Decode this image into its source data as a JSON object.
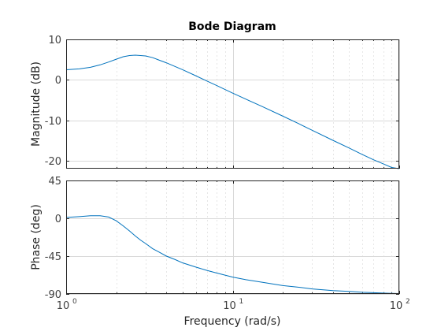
{
  "chart_data": {
    "type": "line",
    "title": "Bode Diagram",
    "xlabel": "Frequency  (rad/s)",
    "x_scale": "log",
    "xlim": [
      1,
      100
    ],
    "x_ticks": [
      1,
      10,
      100
    ],
    "x_tick_labels": [
      {
        "base": "10",
        "exp": "0"
      },
      {
        "base": "10",
        "exp": "1"
      },
      {
        "base": "10",
        "exp": "2"
      }
    ],
    "grid": true,
    "color": "#0072bd",
    "panels": [
      {
        "name": "magnitude",
        "ylabel": "Magnitude (dB)",
        "ylim": [
          -22,
          10
        ],
        "y_ticks": [
          10,
          0,
          -10,
          -20
        ],
        "y_tick_labels": [
          "10",
          "0",
          "-10",
          "-20"
        ],
        "series": [
          {
            "x": [
              1,
              1.2,
              1.4,
              1.6,
              1.8,
              2,
              2.2,
              2.4,
              2.6,
              2.8,
              3,
              3.3,
              3.6,
              4,
              4.5,
              5,
              6,
              7,
              8,
              10,
              12,
              15,
              20,
              25,
              30,
              40,
              50,
              60,
              70,
              80,
              90,
              100
            ],
            "y": [
              2.5,
              2.7,
              3.1,
              3.7,
              4.4,
              5.1,
              5.7,
              6.0,
              6.1,
              6.0,
              5.9,
              5.5,
              4.9,
              4.2,
              3.3,
              2.5,
              1.0,
              -0.3,
              -1.4,
              -3.3,
              -4.8,
              -6.6,
              -9.0,
              -10.9,
              -12.5,
              -15.0,
              -16.9,
              -18.5,
              -19.8,
              -20.8,
              -21.7,
              -22.0
            ]
          }
        ]
      },
      {
        "name": "phase",
        "ylabel": "Phase (deg)",
        "ylim": [
          -90,
          45
        ],
        "y_ticks": [
          45,
          0,
          -45,
          -90
        ],
        "y_tick_labels": [
          "45",
          "0",
          "-45",
          "-90"
        ],
        "series": [
          {
            "x": [
              1,
              1.2,
              1.4,
              1.6,
              1.8,
              2,
              2.2,
              2.4,
              2.6,
              2.8,
              3,
              3.3,
              3.6,
              4,
              4.5,
              5,
              6,
              7,
              8,
              10,
              12,
              15,
              20,
              25,
              30,
              40,
              50,
              60,
              70,
              80,
              90,
              100
            ],
            "y": [
              1,
              2,
              3,
              3,
              1.5,
              -3,
              -9,
              -15,
              -21,
              -26,
              -30,
              -36,
              -40,
              -45,
              -49,
              -53,
              -58,
              -62,
              -65,
              -70,
              -73,
              -76,
              -80,
              -82,
              -84,
              -86,
              -87,
              -88,
              -88.5,
              -89,
              -89.3,
              -89.5
            ]
          }
        ]
      }
    ]
  }
}
